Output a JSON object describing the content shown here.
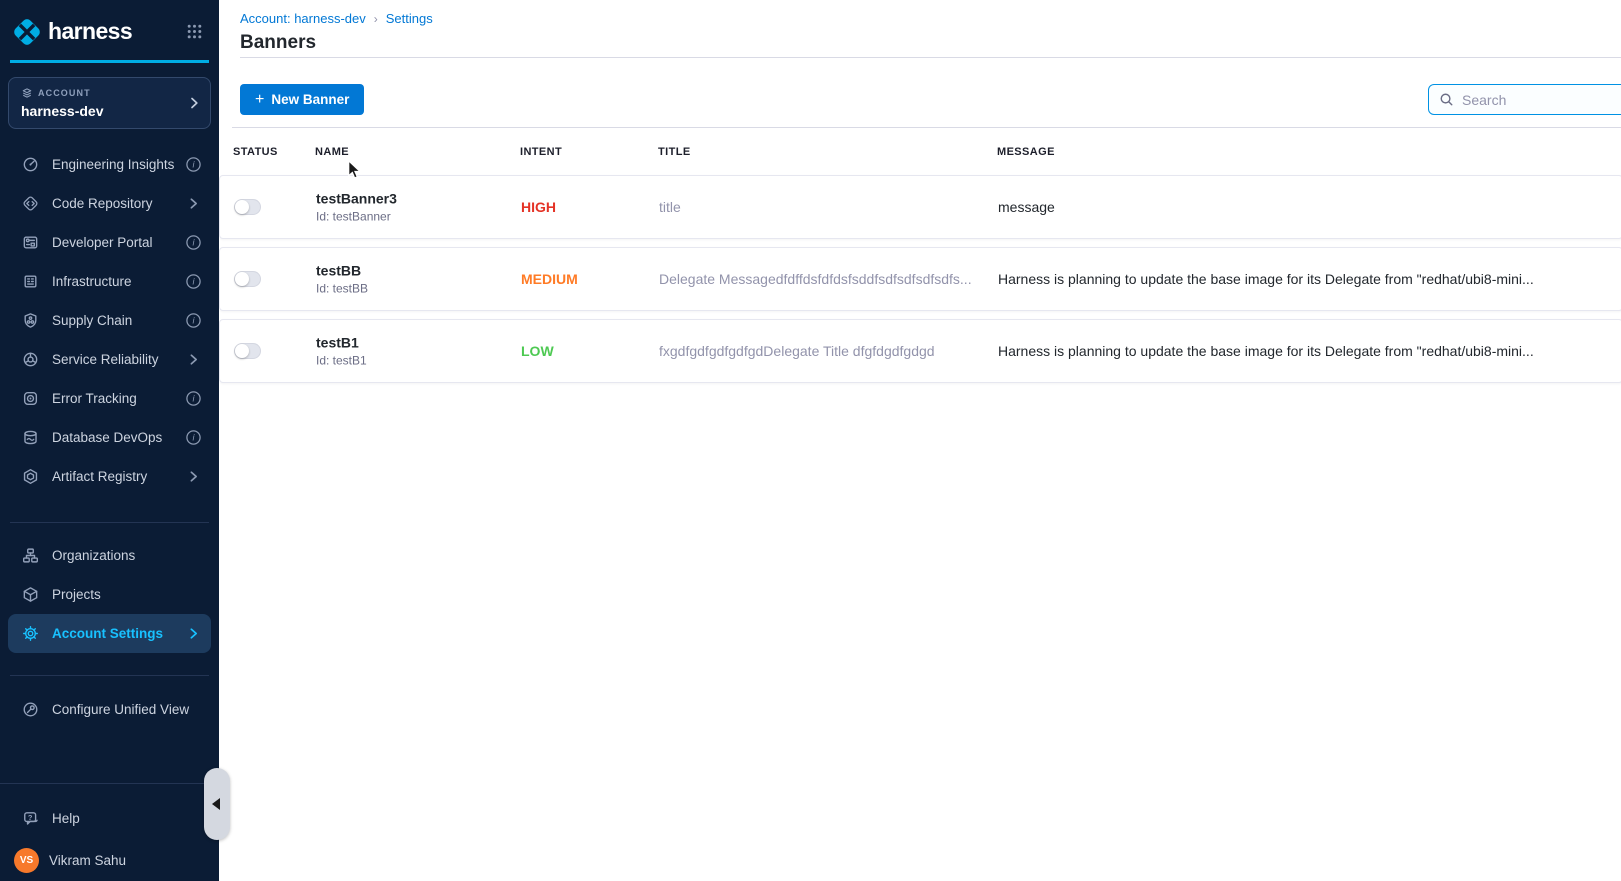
{
  "brand": {
    "name": "harness"
  },
  "sidebar": {
    "account_label": "ACCOUNT",
    "account_name": "harness-dev",
    "nav_primary": [
      {
        "label": "Engineering Insights",
        "icon": "engineering-insights-icon",
        "trailing": "info"
      },
      {
        "label": "Code Repository",
        "icon": "code-repository-icon",
        "trailing": "chevron"
      },
      {
        "label": "Developer Portal",
        "icon": "developer-portal-icon",
        "trailing": "info"
      },
      {
        "label": "Infrastructure",
        "icon": "infrastructure-icon",
        "trailing": "info"
      },
      {
        "label": "Supply Chain",
        "icon": "supply-chain-icon",
        "trailing": "info"
      },
      {
        "label": "Service Reliability",
        "icon": "service-reliability-icon",
        "trailing": "chevron"
      },
      {
        "label": "Error Tracking",
        "icon": "error-tracking-icon",
        "trailing": "info"
      },
      {
        "label": "Database DevOps",
        "icon": "database-devops-icon",
        "trailing": "info"
      },
      {
        "label": "Artifact Registry",
        "icon": "artifact-registry-icon",
        "trailing": "chevron"
      }
    ],
    "nav_secondary": [
      {
        "label": "Organizations",
        "icon": "organizations-icon",
        "trailing": "none"
      },
      {
        "label": "Projects",
        "icon": "projects-icon",
        "trailing": "none"
      },
      {
        "label": "Account Settings",
        "icon": "account-settings-icon",
        "trailing": "chevron",
        "active": true
      }
    ],
    "nav_tertiary": [
      {
        "label": "Configure Unified View",
        "icon": "configure-unified-view-icon",
        "trailing": "none"
      }
    ],
    "footer": {
      "help": "Help",
      "user": {
        "initials": "VS",
        "name": "Vikram Sahu"
      }
    }
  },
  "header": {
    "breadcrumb": [
      {
        "label": "Account: harness-dev"
      },
      {
        "label": "Settings"
      }
    ],
    "title": "Banners"
  },
  "toolbar": {
    "new_banner_label": "New Banner",
    "search_placeholder": "Search"
  },
  "table": {
    "columns": [
      "STATUS",
      "NAME",
      "INTENT",
      "TITLE",
      "MESSAGE"
    ],
    "rows": [
      {
        "enabled": false,
        "name": "testBanner3",
        "id": "Id: testBanner",
        "intent": "HIGH",
        "intent_color": "#e43326",
        "title": "title",
        "message": "message"
      },
      {
        "enabled": false,
        "name": "testBB",
        "id": "Id: testBB",
        "intent": "MEDIUM",
        "intent_color": "#ff7b26",
        "title": "Delegate Messagedfdffdsfdfdsfsddfsdfsdfsdfsdfs...",
        "message": "Harness is planning to update the base image for its Delegate from \"redhat/ubi8-mini..."
      },
      {
        "enabled": false,
        "name": "testB1",
        "id": "Id: testB1",
        "intent": "LOW",
        "intent_color": "#4dc952",
        "title": "fxgdfgdfgdfgdfgdDelegate Title dfgfdgdfgdgd",
        "message": "Harness is planning to update the base image for its Delegate from \"redhat/ubi8-mini..."
      }
    ]
  },
  "colors": {
    "sidebar_bg": "#0b1c35",
    "accent_cyan": "#00ade4",
    "active_item": "#18c1ff",
    "primary_blue": "#0278d5"
  }
}
